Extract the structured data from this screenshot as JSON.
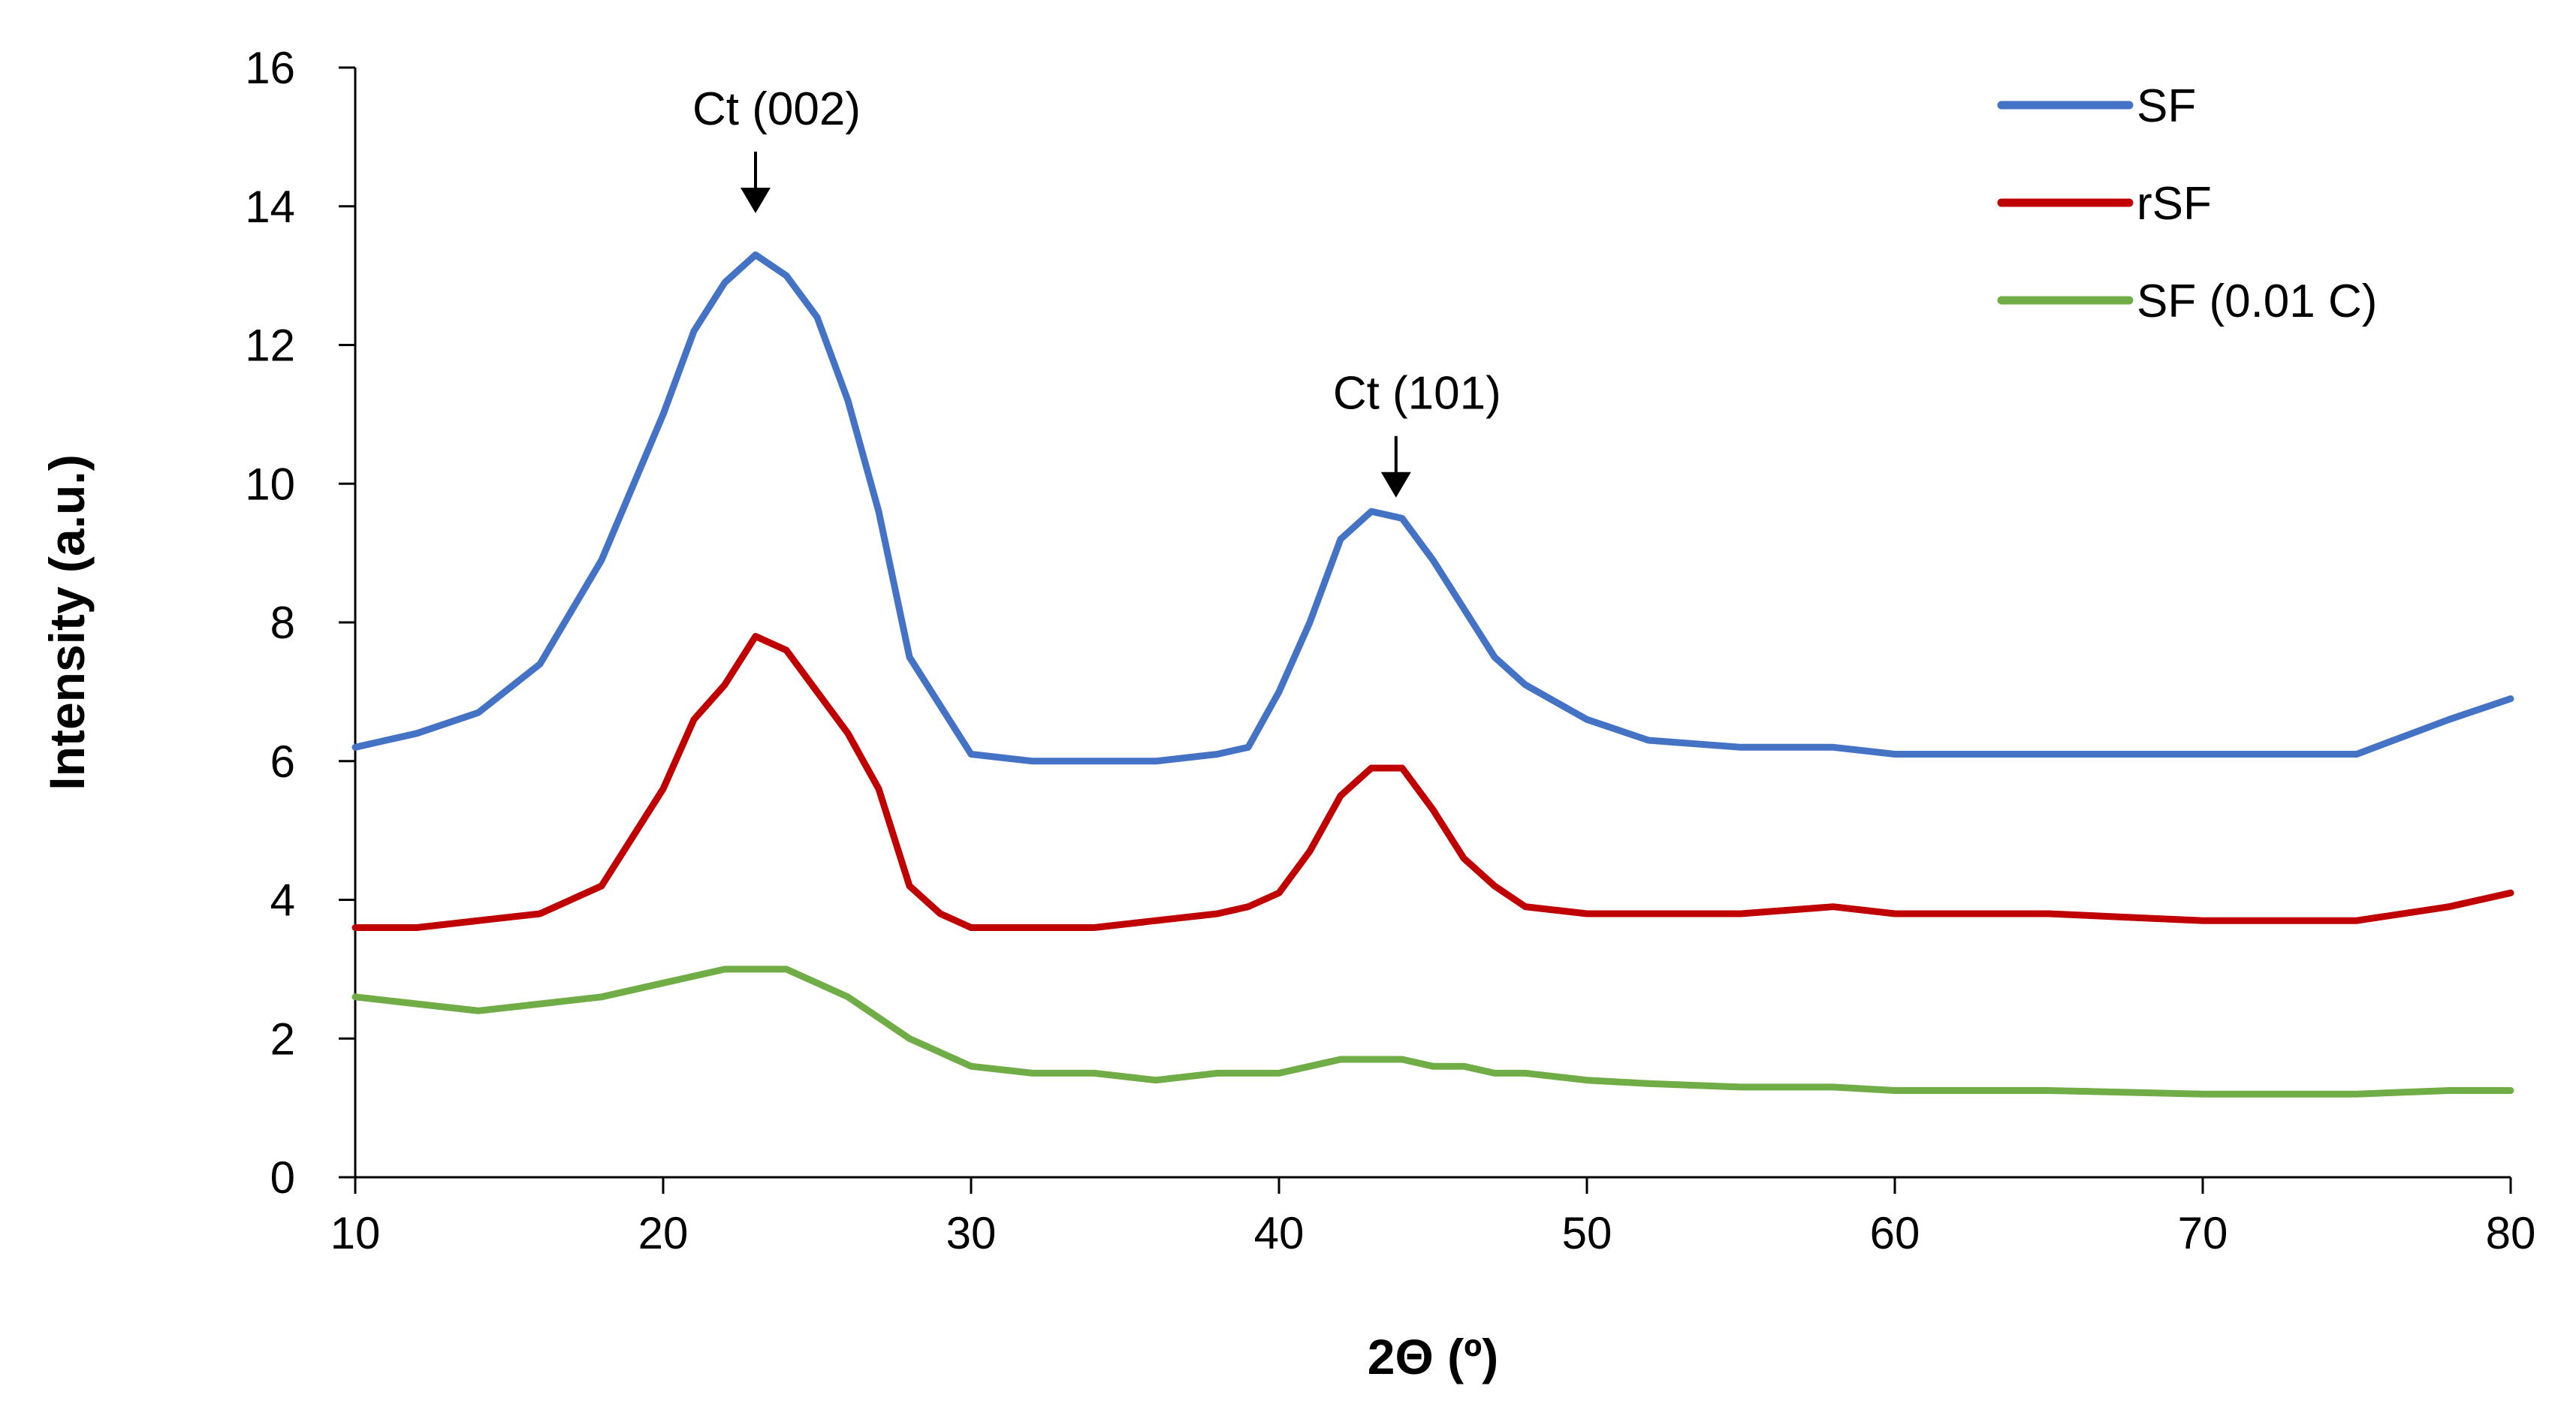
{
  "chart_data": {
    "type": "line",
    "title": "",
    "xlabel": "2Θ (º)",
    "ylabel": "Intensity (a.u.)",
    "xlim": [
      10,
      80
    ],
    "ylim": [
      0,
      16
    ],
    "xticks": [
      10,
      20,
      30,
      40,
      50,
      60,
      70,
      80
    ],
    "yticks": [
      0,
      2,
      4,
      6,
      8,
      10,
      12,
      14,
      16
    ],
    "grid": false,
    "legend_position": "top-right",
    "x": [
      10,
      12,
      14,
      16,
      18,
      20,
      21,
      22,
      23,
      24,
      25,
      26,
      27,
      28,
      29,
      30,
      32,
      34,
      36,
      38,
      39,
      40,
      41,
      42,
      43,
      44,
      45,
      46,
      47,
      48,
      50,
      52,
      55,
      58,
      60,
      65,
      70,
      75,
      78,
      80
    ],
    "series": [
      {
        "name": "SF",
        "color": "#4472C4",
        "values": [
          6.2,
          6.4,
          6.7,
          7.4,
          8.9,
          11.0,
          12.2,
          12.9,
          13.3,
          13.0,
          12.4,
          11.2,
          9.6,
          7.5,
          6.8,
          6.1,
          6.0,
          6.0,
          6.0,
          6.1,
          6.2,
          7.0,
          8.0,
          9.2,
          9.6,
          9.5,
          8.9,
          8.2,
          7.5,
          7.1,
          6.6,
          6.3,
          6.2,
          6.2,
          6.1,
          6.1,
          6.1,
          6.1,
          6.6,
          6.9
        ]
      },
      {
        "name": "rSF",
        "color": "#C00000",
        "values": [
          3.6,
          3.6,
          3.7,
          3.8,
          4.2,
          5.6,
          6.6,
          7.1,
          7.8,
          7.6,
          7.0,
          6.4,
          5.6,
          4.2,
          3.8,
          3.6,
          3.6,
          3.6,
          3.7,
          3.8,
          3.9,
          4.1,
          4.7,
          5.5,
          5.9,
          5.9,
          5.3,
          4.6,
          4.2,
          3.9,
          3.8,
          3.8,
          3.8,
          3.9,
          3.8,
          3.8,
          3.7,
          3.7,
          3.9,
          4.1
        ]
      },
      {
        "name": "SF (0.01 C)",
        "color": "#70AD47",
        "values": [
          2.6,
          2.5,
          2.4,
          2.5,
          2.6,
          2.8,
          2.9,
          3.0,
          3.0,
          3.0,
          2.8,
          2.6,
          2.3,
          2.0,
          1.8,
          1.6,
          1.5,
          1.5,
          1.4,
          1.5,
          1.5,
          1.5,
          1.6,
          1.7,
          1.7,
          1.7,
          1.6,
          1.6,
          1.5,
          1.5,
          1.4,
          1.35,
          1.3,
          1.3,
          1.25,
          1.25,
          1.2,
          1.2,
          1.25,
          1.25
        ]
      }
    ],
    "annotations": [
      {
        "label": "Ct (002)",
        "x": 23,
        "y": 13.9
      },
      {
        "label": "Ct (101)",
        "x": 43.8,
        "y": 9.8
      }
    ]
  }
}
